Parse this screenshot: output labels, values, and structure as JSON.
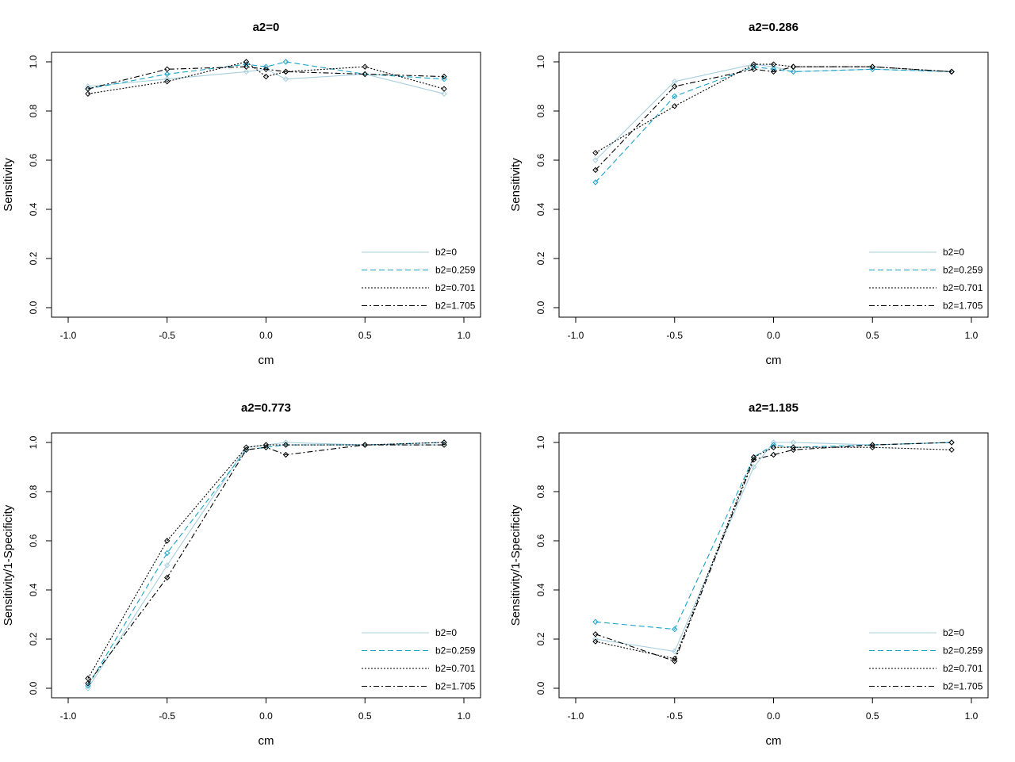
{
  "chart_data": [
    {
      "type": "line",
      "title": "a2=0",
      "xlabel": "cm",
      "ylabel": "Sensitivity",
      "xlim": [
        -1.0,
        1.0
      ],
      "ylim": [
        0.0,
        1.0
      ],
      "xticks": [
        "-1.0",
        "-0.5",
        "0.0",
        "0.5",
        "1.0"
      ],
      "yticks": [
        "0.0",
        "0.2",
        "0.4",
        "0.6",
        "0.8",
        "1.0"
      ],
      "x": [
        -0.9,
        -0.5,
        -0.1,
        0.0,
        0.1,
        0.5,
        0.9
      ],
      "legend_position": "bottom-right",
      "grid": false,
      "series": [
        {
          "name": "b2=0",
          "values": [
            0.9,
            0.93,
            0.96,
            0.97,
            0.93,
            0.95,
            0.87
          ]
        },
        {
          "name": "b2=0.259",
          "values": [
            0.89,
            0.95,
            0.99,
            0.98,
            1.0,
            0.95,
            0.93
          ]
        },
        {
          "name": "b2=0.701",
          "values": [
            0.87,
            0.92,
            1.0,
            0.94,
            0.96,
            0.98,
            0.89
          ]
        },
        {
          "name": "b2=1.705",
          "values": [
            0.89,
            0.97,
            0.98,
            0.97,
            0.96,
            0.95,
            0.94
          ]
        }
      ]
    },
    {
      "type": "line",
      "title": "a2=0.286",
      "xlabel": "cm",
      "ylabel": "Sensitivity",
      "xlim": [
        -1.0,
        1.0
      ],
      "ylim": [
        0.0,
        1.0
      ],
      "xticks": [
        "-1.0",
        "-0.5",
        "0.0",
        "0.5",
        "1.0"
      ],
      "yticks": [
        "0.0",
        "0.2",
        "0.4",
        "0.6",
        "0.8",
        "1.0"
      ],
      "x": [
        -0.9,
        -0.5,
        -0.1,
        0.0,
        0.1,
        0.5,
        0.9
      ],
      "legend_position": "bottom-right",
      "grid": false,
      "series": [
        {
          "name": "b2=0",
          "values": [
            0.6,
            0.92,
            0.99,
            0.98,
            0.96,
            0.97,
            0.96
          ]
        },
        {
          "name": "b2=0.259",
          "values": [
            0.51,
            0.86,
            0.98,
            0.97,
            0.96,
            0.97,
            0.96
          ]
        },
        {
          "name": "b2=0.701",
          "values": [
            0.63,
            0.82,
            0.99,
            0.99,
            0.98,
            0.98,
            0.96
          ]
        },
        {
          "name": "b2=1.705",
          "values": [
            0.56,
            0.9,
            0.97,
            0.96,
            0.98,
            0.98,
            0.96
          ]
        }
      ]
    },
    {
      "type": "line",
      "title": "a2=0.773",
      "xlabel": "cm",
      "ylabel": "Sensitivity/1-Specificity",
      "xlim": [
        -1.0,
        1.0
      ],
      "ylim": [
        0.0,
        1.0
      ],
      "xticks": [
        "-1.0",
        "-0.5",
        "0.0",
        "0.5",
        "1.0"
      ],
      "yticks": [
        "0.0",
        "0.2",
        "0.4",
        "0.6",
        "0.8",
        "1.0"
      ],
      "x": [
        -0.9,
        -0.5,
        -0.1,
        0.0,
        0.1,
        0.5,
        0.9
      ],
      "legend_position": "bottom-right",
      "grid": false,
      "series": [
        {
          "name": "b2=0",
          "values": [
            0.0,
            0.5,
            0.98,
            0.99,
            1.0,
            0.99,
            0.99
          ]
        },
        {
          "name": "b2=0.259",
          "values": [
            0.01,
            0.55,
            0.97,
            0.98,
            0.99,
            0.99,
            1.0
          ]
        },
        {
          "name": "b2=0.701",
          "values": [
            0.04,
            0.6,
            0.98,
            0.99,
            0.99,
            0.99,
            1.0
          ]
        },
        {
          "name": "b2=1.705",
          "values": [
            0.02,
            0.45,
            0.97,
            0.98,
            0.95,
            0.99,
            0.99
          ]
        }
      ]
    },
    {
      "type": "line",
      "title": "a2=1.185",
      "xlabel": "cm",
      "ylabel": "Sensitivity/1-Specificity",
      "xlim": [
        -1.0,
        1.0
      ],
      "ylim": [
        0.0,
        1.0
      ],
      "xticks": [
        "-1.0",
        "-0.5",
        "0.0",
        "0.5",
        "1.0"
      ],
      "yticks": [
        "0.0",
        "0.2",
        "0.4",
        "0.6",
        "0.8",
        "1.0"
      ],
      "x": [
        -0.9,
        -0.5,
        -0.1,
        0.0,
        0.1,
        0.5,
        0.9
      ],
      "legend_position": "bottom-right",
      "grid": false,
      "series": [
        {
          "name": "b2=0",
          "values": [
            0.2,
            0.15,
            0.9,
            1.0,
            1.0,
            0.99,
            1.0
          ]
        },
        {
          "name": "b2=0.259",
          "values": [
            0.27,
            0.24,
            0.94,
            0.99,
            0.98,
            0.99,
            1.0
          ]
        },
        {
          "name": "b2=0.701",
          "values": [
            0.19,
            0.12,
            0.94,
            0.98,
            0.98,
            0.98,
            0.97
          ]
        },
        {
          "name": "b2=1.705",
          "values": [
            0.22,
            0.11,
            0.93,
            0.95,
            0.97,
            0.99,
            1.0
          ]
        }
      ]
    }
  ],
  "series_styles": [
    {
      "color": "#a6cfdd",
      "dash": ""
    },
    {
      "color": "#1aa3c8",
      "dash": "7,4"
    },
    {
      "color": "#000000",
      "dash": "2,2"
    },
    {
      "color": "#000000",
      "dash": "7,3,2,3"
    }
  ]
}
